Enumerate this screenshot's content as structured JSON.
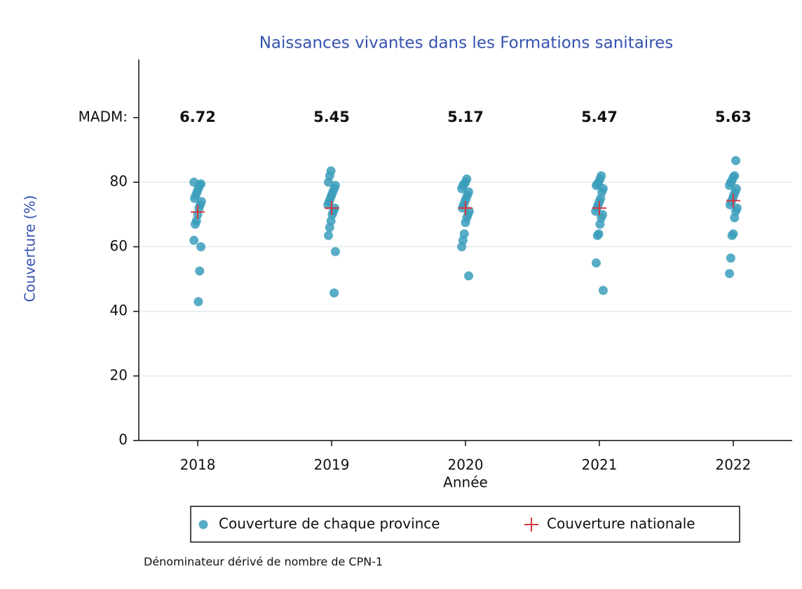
{
  "chart_data": {
    "type": "scatter",
    "title": "Naissances vivantes dans les Formations sanitaires",
    "y_label": "Couverture (%)",
    "x_label": "Année",
    "xlim": [
      2017.56,
      2022.44
    ],
    "xticks": [
      2018,
      2019,
      2020,
      2021,
      2022
    ],
    "ylim": [
      0,
      118
    ],
    "yticks": [
      0,
      20,
      40,
      60,
      80
    ],
    "grid": true,
    "madm_label": "MADM:",
    "madm_values": [
      6.72,
      5.45,
      5.17,
      5.47,
      5.63
    ],
    "series": [
      {
        "name": "Couverture de chaque province",
        "color": "#3b9dbb",
        "marker": "circle",
        "x": [
          2018,
          2018,
          2018,
          2018,
          2018,
          2018,
          2018,
          2018,
          2018,
          2018,
          2018,
          2018,
          2018,
          2018,
          2018,
          2018,
          2018,
          2019,
          2019,
          2019,
          2019,
          2019,
          2019,
          2019,
          2019,
          2019,
          2019,
          2019,
          2019,
          2019,
          2019,
          2019,
          2019,
          2019,
          2019,
          2020,
          2020,
          2020,
          2020,
          2020,
          2020,
          2020,
          2020,
          2020,
          2020,
          2020,
          2020,
          2020,
          2020,
          2020,
          2020,
          2020,
          2020,
          2020,
          2021,
          2021,
          2021,
          2021,
          2021,
          2021,
          2021,
          2021,
          2021,
          2021,
          2021,
          2021,
          2021,
          2021,
          2021,
          2021,
          2021,
          2021,
          2021,
          2022,
          2022,
          2022,
          2022,
          2022,
          2022,
          2022,
          2022,
          2022,
          2022,
          2022,
          2022,
          2022,
          2022,
          2022,
          2022,
          2022,
          2022,
          2022
        ],
        "values": [
          80,
          79.5,
          79,
          78,
          77,
          76,
          75,
          74,
          73,
          72,
          70,
          68,
          67,
          62,
          60,
          52.5,
          43,
          83.5,
          82,
          80,
          79,
          78,
          77,
          76,
          75,
          74,
          73,
          72,
          71,
          70,
          68,
          66,
          63.5,
          58.5,
          45.7,
          81,
          80,
          79.5,
          79,
          78,
          77,
          76,
          75,
          74,
          73,
          72,
          71,
          70,
          69,
          67.5,
          64,
          62,
          60,
          51,
          82,
          81,
          80,
          79.5,
          79,
          78,
          77,
          75,
          74,
          73,
          72,
          71,
          70,
          69,
          67,
          64,
          63.5,
          55,
          46.5,
          86.7,
          82,
          81.5,
          80.5,
          80,
          79,
          78,
          77,
          76,
          75,
          74,
          73,
          72,
          71,
          69,
          64,
          63.5,
          56.5,
          51.7
        ]
      },
      {
        "name": "Couverture nationale",
        "color": "#d9363e",
        "marker": "plus",
        "x": [
          2018,
          2019,
          2020,
          2021,
          2022
        ],
        "values": [
          70.8,
          72,
          72,
          72,
          74.3
        ]
      }
    ],
    "note": "Dénominateur dérivé de nombre de CPN-1"
  }
}
